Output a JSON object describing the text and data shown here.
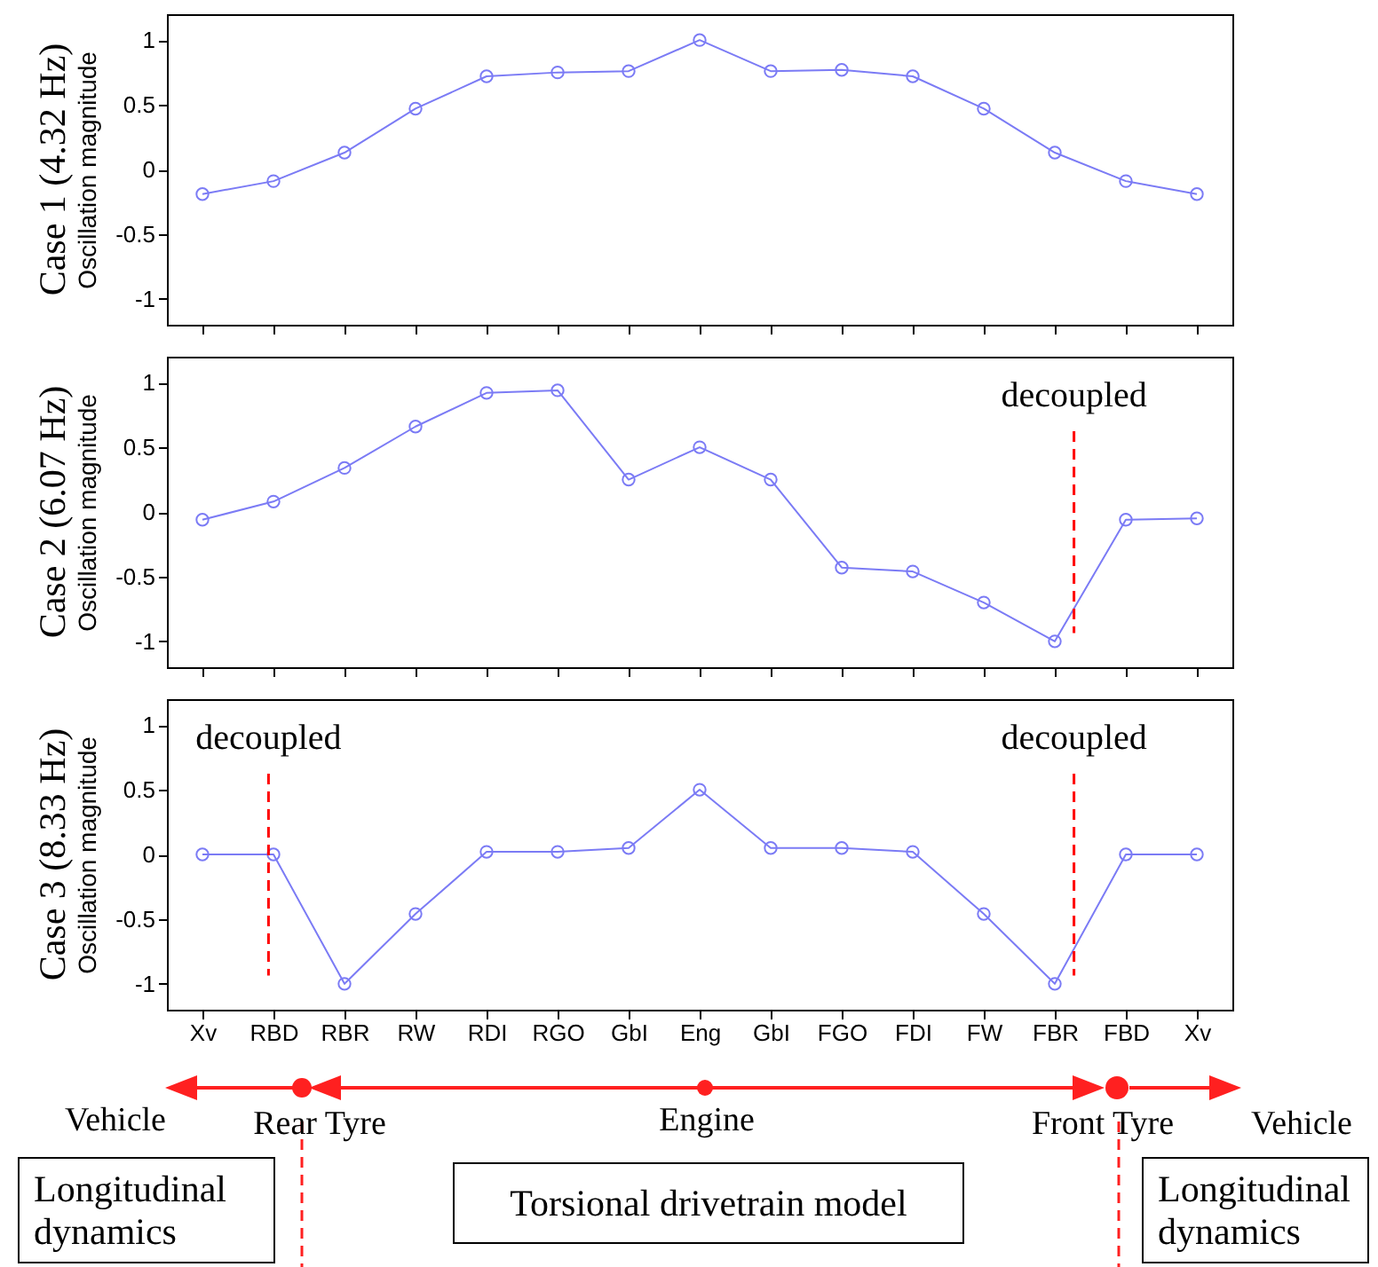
{
  "chart_data": [
    {
      "type": "line",
      "title": "Case 1 (4.32 Hz)",
      "ylabel": "Oscillation magnitude",
      "categories": [
        null,
        null,
        null,
        null,
        null,
        null,
        null,
        null,
        null,
        null,
        null,
        null,
        null,
        null,
        null
      ],
      "ylim": [
        -1.2,
        1.2
      ],
      "yticks": [
        -1,
        -0.5,
        0,
        0.5,
        1
      ],
      "tick_labels": "y",
      "marker": "circle",
      "grid": false,
      "series": [
        {
          "color": "#7b7bf5",
          "values": [
            -0.19,
            -0.09,
            0.13,
            0.47,
            0.72,
            0.75,
            0.76,
            1,
            0.76,
            0.77,
            0.72,
            0.47,
            0.13,
            -0.09,
            -0.19
          ]
        }
      ]
    },
    {
      "type": "line",
      "title": "Case 2 (6.07 Hz)",
      "ylabel": "Oscillation magnitude",
      "categories": [
        null,
        null,
        null,
        null,
        null,
        null,
        null,
        null,
        null,
        null,
        null,
        null,
        null,
        null,
        null
      ],
      "ylim": [
        -1.2,
        1.2
      ],
      "yticks": [
        -1,
        -0.5,
        0,
        0.5,
        1
      ],
      "tick_labels": "y",
      "marker": "circle",
      "grid": false,
      "annotations": [
        "decoupled"
      ],
      "series": [
        {
          "color": "#7b7bf5",
          "values": [
            -0.06,
            0.08,
            0.34,
            0.66,
            0.92,
            0.94,
            0.25,
            0.5,
            0.25,
            -0.43,
            -0.46,
            -0.7,
            -1,
            -0.06,
            -0.05
          ]
        }
      ]
    },
    {
      "type": "line",
      "title": "Case 3 (8.33 Hz)",
      "ylabel": "Oscillation magnitude",
      "categories": [
        "Xv",
        "RBD",
        "RBR",
        "RW",
        "RDI",
        "RGO",
        "GbI",
        "Eng",
        "GbI",
        "FGO",
        "FDI",
        "FW",
        "FBR",
        "FBD",
        "Xv"
      ],
      "ylim": [
        -1.2,
        1.2
      ],
      "yticks": [
        -1,
        -0.5,
        0,
        0.5,
        1
      ],
      "marker": "circle",
      "grid": false,
      "annotations": [
        "decoupled",
        "decoupled",
        "Vehicle",
        "Rear Tyre",
        "Engine",
        "Front Tyre",
        "Vehicle",
        "Longitudinal dynamics",
        "Torsional drivetrain model",
        "Longitudinal dynamics"
      ],
      "series": [
        {
          "color": "#7b7bf5",
          "values": [
            0,
            0,
            -1,
            -0.46,
            0.02,
            0.02,
            0.05,
            0.5,
            0.05,
            0.05,
            0.02,
            -0.46,
            -1,
            0,
            0
          ]
        }
      ]
    }
  ]
}
